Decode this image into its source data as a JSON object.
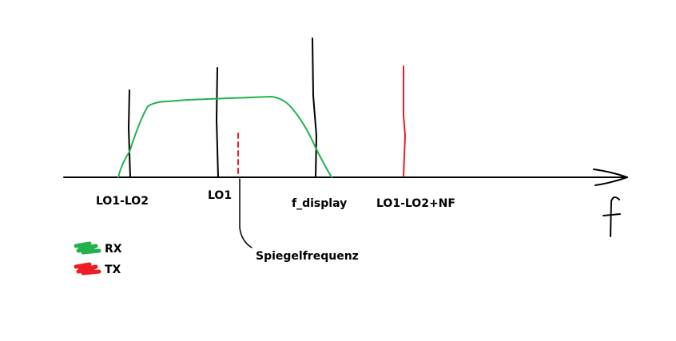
{
  "labels": [
    "LO1-LO2",
    "LO1",
    "f_display",
    "LO1-LO2+NF"
  ],
  "annotation": "Spiegelfrequenz",
  "axis_label": "f",
  "legend": [
    {
      "name": "RX",
      "color": "#22b14c"
    },
    {
      "name": "TX",
      "color": "#ed1c24"
    }
  ]
}
